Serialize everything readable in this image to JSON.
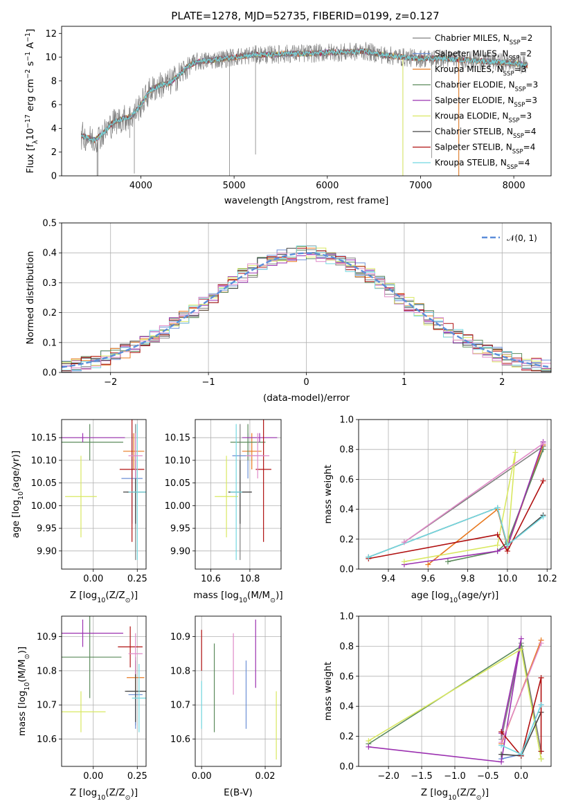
{
  "figure": {
    "title": "PLATE=1278, MJD=52735, FIBERID=0199, z=0.127"
  },
  "colors": {
    "chabrier_miles": "#7f7f7f",
    "salpeter_miles": "#6b8fd6",
    "kroupa_miles": "#e8791f",
    "chabrier_elodie": "#5a8a5a",
    "salpeter_elodie": "#9b30b0",
    "kroupa_elodie": "#d9e860",
    "chabrier_stelib": "#444444",
    "salpeter_stelib": "#b01010",
    "kroupa_stelib": "#72d8e0",
    "normal_curve": "#5b8dd9",
    "pink": "#e08ac8"
  },
  "chart_data": [
    {
      "id": "spectrum",
      "type": "line",
      "xlabel": "wavelength [Angstrom, rest frame]",
      "ylabel": "Flux [f_λ 10^-17 erg cm^-2 s^-1 A^-1]",
      "xlim": [
        3150,
        8400
      ],
      "ylim": [
        0,
        12.6
      ],
      "xticks": [
        "4000",
        "5000",
        "6000",
        "7000",
        "8000"
      ],
      "yticks": [
        "0",
        "2",
        "4",
        "6",
        "8",
        "10",
        "12"
      ],
      "legend_position": "top-right",
      "legend": [
        {
          "text": "Chabrier MILES, N",
          "sub": "SSP",
          "suffix": "=2",
          "color": "chabrier_miles"
        },
        {
          "text": "Salpeter MILES, N",
          "sub": "SSP",
          "suffix": "=2",
          "color": "salpeter_miles"
        },
        {
          "text": "Kroupa MILES, N",
          "sub": "SSP",
          "suffix": "=3",
          "color": "kroupa_miles"
        },
        {
          "text": "Chabrier ELODIE, N",
          "sub": "SSP",
          "suffix": "=3",
          "color": "chabrier_elodie"
        },
        {
          "text": "Salpeter ELODIE, N",
          "sub": "SSP",
          "suffix": "=3",
          "color": "salpeter_elodie"
        },
        {
          "text": "Kroupa ELODIE, N",
          "sub": "SSP",
          "suffix": "=3",
          "color": "kroupa_elodie"
        },
        {
          "text": "Chabrier STELIB, N",
          "sub": "SSP",
          "suffix": "=4",
          "color": "chabrier_stelib"
        },
        {
          "text": "Salpeter STELIB, N",
          "sub": "SSP",
          "suffix": "=4",
          "color": "salpeter_stelib"
        },
        {
          "text": "Kroupa STELIB, N",
          "sub": "SSP",
          "suffix": "=4",
          "color": "kroupa_stelib"
        }
      ],
      "continuum": {
        "x": [
          3360,
          3500,
          3600,
          3700,
          3800,
          3900,
          4000,
          4100,
          4200,
          4300,
          4400,
          4500,
          4600,
          4800,
          5000,
          5200,
          5400,
          5600,
          5800,
          6000,
          6200,
          6400,
          6600,
          6800,
          7000,
          7200,
          7400,
          7600,
          7800,
          8000,
          8150
        ],
        "y": [
          3.4,
          3.0,
          3.6,
          4.5,
          4.8,
          5.0,
          6.0,
          7.2,
          7.6,
          7.8,
          8.4,
          9.2,
          9.6,
          9.8,
          10.0,
          10.2,
          10.2,
          10.3,
          10.3,
          10.4,
          10.4,
          10.5,
          10.2,
          10.0,
          9.9,
          9.9,
          9.8,
          9.7,
          9.6,
          9.5,
          9.3
        ]
      },
      "dips": [
        [
          3530,
          0
        ],
        [
          3540,
          0
        ],
        [
          3880,
          3.2
        ],
        [
          3930,
          0.2
        ],
        [
          4950,
          0
        ],
        [
          5230,
          1.8
        ],
        [
          6810,
          0
        ],
        [
          7120,
          1.5
        ],
        [
          7410,
          0
        ]
      ]
    },
    {
      "id": "residuals",
      "type": "histogram",
      "xlabel": "(data-model)/error",
      "ylabel": "Normed distribution",
      "xlim": [
        -2.5,
        2.5
      ],
      "ylim": [
        0,
        0.5
      ],
      "xticks": [
        "−2",
        "−1",
        "0",
        "1",
        "2"
      ],
      "yticks": [
        "0.0",
        "0.1",
        "0.2",
        "0.3",
        "0.4",
        "0.5"
      ],
      "bin_width": 0.1,
      "legend": [
        "𝒩(0, 1)"
      ],
      "normal_curve": "N(0,1)"
    },
    {
      "id": "age_vs_Z",
      "type": "scatter",
      "xlabel": "Z [log10(Z/Z⊙)]",
      "ylabel": "age [log10(age/yr)]",
      "xlim": [
        -0.18,
        0.3
      ],
      "ylim": [
        9.86,
        10.19
      ],
      "xticks": [
        "0.00",
        "0.25"
      ],
      "yticks": [
        "9.90",
        "9.95",
        "10.00",
        "10.05",
        "10.10",
        "10.15"
      ],
      "points": [
        {
          "x": 0.24,
          "y": 10.03,
          "xerr": 0.05,
          "yerr": 0.15,
          "color": "chabrier_miles"
        },
        {
          "x": 0.22,
          "y": 10.06,
          "xerr": 0.06,
          "yerr": 0.1,
          "color": "salpeter_miles"
        },
        {
          "x": 0.23,
          "y": 10.12,
          "xerr": 0.06,
          "yerr": 0.04,
          "color": "kroupa_miles"
        },
        {
          "x": -0.02,
          "y": 10.14,
          "xerr": 0.19,
          "yerr": 0.04,
          "color": "chabrier_elodie"
        },
        {
          "x": -0.06,
          "y": 10.15,
          "xerr": 0.24,
          "yerr": 0.01,
          "color": "salpeter_elodie"
        },
        {
          "x": -0.07,
          "y": 10.02,
          "xerr": 0.09,
          "yerr": 0.09,
          "color": "kroupa_elodie"
        },
        {
          "x": 0.24,
          "y": 10.03,
          "xerr": 0.07,
          "yerr": 0.07,
          "color": "chabrier_stelib"
        },
        {
          "x": 0.22,
          "y": 10.08,
          "xerr": 0.07,
          "yerr": 0.16,
          "color": "salpeter_stelib"
        },
        {
          "x": 0.25,
          "y": 10.03,
          "xerr": 0.05,
          "yerr": 0.15,
          "color": "kroupa_stelib"
        },
        {
          "x": 0.24,
          "y": 10.11,
          "xerr": 0.04,
          "yerr": 0.05,
          "color": "pink"
        }
      ]
    },
    {
      "id": "age_vs_mass",
      "type": "scatter",
      "xlabel": "mass [log10(M/M⊙)]",
      "ylabel": "",
      "xlim": [
        10.52,
        10.96
      ],
      "ylim": [
        9.86,
        10.19
      ],
      "xticks": [
        "10.6",
        "10.8"
      ],
      "yticks": [
        "9.90",
        "9.95",
        "10.00",
        "10.05",
        "10.10",
        "10.15"
      ],
      "points": [
        {
          "x": 10.75,
          "y": 10.03,
          "xerr": 0.06,
          "yerr": 0.15,
          "color": "chabrier_miles"
        },
        {
          "x": 10.79,
          "y": 10.11,
          "xerr": 0.08,
          "yerr": 0.05,
          "color": "salpeter_miles"
        },
        {
          "x": 10.81,
          "y": 10.12,
          "xerr": 0.05,
          "yerr": 0.04,
          "color": "kroupa_miles"
        },
        {
          "x": 10.79,
          "y": 10.14,
          "xerr": 0.09,
          "yerr": 0.04,
          "color": "chabrier_elodie"
        },
        {
          "x": 10.85,
          "y": 10.15,
          "xerr": 0.09,
          "yerr": 0.01,
          "color": "salpeter_elodie"
        },
        {
          "x": 10.68,
          "y": 10.02,
          "xerr": 0.06,
          "yerr": 0.09,
          "color": "kroupa_elodie"
        },
        {
          "x": 10.75,
          "y": 10.03,
          "xerr": 0.06,
          "yerr": 0.07,
          "color": "chabrier_stelib"
        },
        {
          "x": 10.87,
          "y": 10.08,
          "xerr": 0.04,
          "yerr": 0.16,
          "color": "salpeter_stelib"
        },
        {
          "x": 10.73,
          "y": 10.03,
          "xerr": 0.03,
          "yerr": 0.15,
          "color": "kroupa_stelib"
        },
        {
          "x": 10.84,
          "y": 10.11,
          "xerr": 0.06,
          "yerr": 0.05,
          "color": "pink"
        }
      ]
    },
    {
      "id": "weight_vs_age",
      "type": "line",
      "xlabel": "age [log10(age/yr)]",
      "ylabel": "mass weight",
      "xlim": [
        9.25,
        10.22
      ],
      "ylim": [
        0,
        1.0
      ],
      "xticks": [
        "9.4",
        "9.6",
        "9.8",
        "10.0",
        "10.2"
      ],
      "yticks": [
        "0.0",
        "0.2",
        "0.4",
        "0.6",
        "0.8",
        "1.0"
      ],
      "series": [
        {
          "color": "chabrier_miles",
          "x": [
            9.48,
            10.18
          ],
          "y": [
            0.18,
            0.82
          ]
        },
        {
          "color": "salpeter_miles",
          "x": [
            9.95,
            10.0,
            10.18
          ],
          "y": [
            0.4,
            0.15,
            0.83
          ]
        },
        {
          "color": "kroupa_miles",
          "x": [
            9.6,
            9.95,
            10.0,
            10.18
          ],
          "y": [
            0.03,
            0.4,
            0.15,
            0.83
          ]
        },
        {
          "color": "chabrier_elodie",
          "x": [
            9.7,
            9.95,
            10.0,
            10.18
          ],
          "y": [
            0.05,
            0.12,
            0.18,
            0.8
          ]
        },
        {
          "color": "salpeter_elodie",
          "x": [
            9.48,
            9.95,
            10.0,
            10.18
          ],
          "y": [
            0.03,
            0.12,
            0.15,
            0.85
          ]
        },
        {
          "color": "kroupa_elodie",
          "x": [
            9.48,
            9.95,
            10.04,
            10.0
          ],
          "y": [
            0.05,
            0.16,
            0.78,
            0.14
          ]
        },
        {
          "color": "chabrier_stelib",
          "x": [
            9.3,
            9.95,
            10.0,
            10.18
          ],
          "y": [
            0.08,
            0.41,
            0.16,
            0.36
          ]
        },
        {
          "color": "salpeter_stelib",
          "x": [
            9.3,
            9.95,
            10.0,
            10.18
          ],
          "y": [
            0.07,
            0.23,
            0.12,
            0.59
          ]
        },
        {
          "color": "kroupa_stelib",
          "x": [
            9.3,
            9.95,
            10.0,
            10.18
          ],
          "y": [
            0.08,
            0.41,
            0.16,
            0.35
          ]
        },
        {
          "color": "pink",
          "x": [
            9.48,
            10.18
          ],
          "y": [
            0.18,
            0.84
          ]
        }
      ]
    },
    {
      "id": "mass_vs_Z",
      "type": "scatter",
      "xlabel": "Z [log10(Z/Z⊙)]",
      "ylabel": "mass [log10(M/M⊙)]",
      "xlim": [
        -0.18,
        0.3
      ],
      "ylim": [
        10.52,
        10.96
      ],
      "xticks": [
        "0.00",
        "0.25"
      ],
      "yticks": [
        "10.6",
        "10.7",
        "10.8",
        "10.9"
      ],
      "points": [
        {
          "x": 0.24,
          "y": 10.74,
          "xerr": 0.05,
          "yerr": 0.1,
          "color": "chabrier_miles"
        },
        {
          "x": 0.24,
          "y": 10.73,
          "xerr": 0.04,
          "yerr": 0.1,
          "color": "salpeter_miles"
        },
        {
          "x": 0.24,
          "y": 10.78,
          "xerr": 0.05,
          "yerr": 0.04,
          "color": "kroupa_miles"
        },
        {
          "x": -0.02,
          "y": 10.84,
          "xerr": 0.18,
          "yerr": 0.12,
          "color": "chabrier_elodie"
        },
        {
          "x": -0.06,
          "y": 10.91,
          "xerr": 0.23,
          "yerr": 0.04,
          "color": "salpeter_elodie"
        },
        {
          "x": -0.07,
          "y": 10.68,
          "xerr": 0.14,
          "yerr": 0.06,
          "color": "kroupa_elodie"
        },
        {
          "x": 0.24,
          "y": 10.74,
          "xerr": 0.06,
          "yerr": 0.09,
          "color": "chabrier_stelib"
        },
        {
          "x": 0.21,
          "y": 10.87,
          "xerr": 0.07,
          "yerr": 0.06,
          "color": "salpeter_stelib"
        },
        {
          "x": 0.26,
          "y": 10.72,
          "xerr": 0.04,
          "yerr": 0.1,
          "color": "kroupa_stelib"
        },
        {
          "x": 0.24,
          "y": 10.85,
          "xerr": 0.04,
          "yerr": 0.06,
          "color": "pink"
        }
      ]
    },
    {
      "id": "mass_vs_ebv",
      "type": "scatter",
      "xlabel": "E(B-V)",
      "ylabel": "",
      "xlim": [
        -0.002,
        0.025
      ],
      "ylim": [
        10.52,
        10.96
      ],
      "xticks": [
        "0.00",
        "0.02"
      ],
      "yticks": [
        "10.6",
        "10.7",
        "10.8",
        "10.9"
      ],
      "points": [
        {
          "x": 0.0,
          "y": 10.86,
          "xerr": 0,
          "yerr": 0.06,
          "color": "salpeter_stelib"
        },
        {
          "x": 0.0,
          "y": 10.7,
          "xerr": 0,
          "yerr": 0.07,
          "color": "kroupa_stelib"
        },
        {
          "x": 0.004,
          "y": 10.75,
          "xerr": 0,
          "yerr": 0.13,
          "color": "chabrier_elodie"
        },
        {
          "x": 0.01,
          "y": 10.82,
          "xerr": 0,
          "yerr": 0.09,
          "color": "pink"
        },
        {
          "x": 0.014,
          "y": 10.73,
          "xerr": 0,
          "yerr": 0.1,
          "color": "salpeter_miles"
        },
        {
          "x": 0.017,
          "y": 10.85,
          "xerr": 0,
          "yerr": 0.1,
          "color": "salpeter_elodie"
        },
        {
          "x": 0.0235,
          "y": 10.64,
          "xerr": 0,
          "yerr": 0.1,
          "color": "kroupa_elodie"
        }
      ]
    },
    {
      "id": "weight_vs_Z",
      "type": "line",
      "xlabel": "Z [log10(Z/Z⊙)]",
      "ylabel": "mass weight",
      "xlim": [
        -2.45,
        0.45
      ],
      "ylim": [
        0,
        1.0
      ],
      "xticks": [
        "−2.0",
        "−1.5",
        "−1.0",
        "−0.5",
        "0.0"
      ],
      "yticks": [
        "0.0",
        "0.2",
        "0.4",
        "0.6",
        "0.8",
        "1.0"
      ],
      "series": [
        {
          "color": "chabrier_miles",
          "x": [
            -0.3,
            0.0,
            0.3
          ],
          "y": [
            0.18,
            0.82,
            0.1
          ]
        },
        {
          "color": "salpeter_miles",
          "x": [
            -0.3,
            0.0,
            0.3
          ],
          "y": [
            0.05,
            0.08,
            0.41
          ]
        },
        {
          "color": "kroupa_miles",
          "x": [
            -0.3,
            0.3
          ],
          "y": [
            0.15,
            0.84
          ]
        },
        {
          "color": "chabrier_elodie",
          "x": [
            -2.3,
            0.0,
            0.3
          ],
          "y": [
            0.15,
            0.8,
            0.05
          ]
        },
        {
          "color": "salpeter_elodie",
          "x": [
            -2.3,
            -0.3,
            0.0,
            -0.3
          ],
          "y": [
            0.13,
            0.03,
            0.85,
            0.22
          ]
        },
        {
          "color": "kroupa_elodie",
          "x": [
            -2.3,
            0.0,
            0.3
          ],
          "y": [
            0.17,
            0.78,
            0.05
          ]
        },
        {
          "color": "chabrier_stelib",
          "x": [
            -0.3,
            0.0,
            0.3
          ],
          "y": [
            0.08,
            0.07,
            0.36
          ]
        },
        {
          "color": "salpeter_stelib",
          "x": [
            -0.3,
            0.0,
            0.3,
            0.3
          ],
          "y": [
            0.23,
            0.07,
            0.59,
            0.1
          ]
        },
        {
          "color": "kroupa_stelib",
          "x": [
            -0.3,
            0.0,
            0.3
          ],
          "y": [
            0.14,
            0.08,
            0.41
          ]
        },
        {
          "color": "pink",
          "x": [
            -0.3,
            0.3
          ],
          "y": [
            0.16,
            0.82
          ]
        }
      ]
    }
  ]
}
